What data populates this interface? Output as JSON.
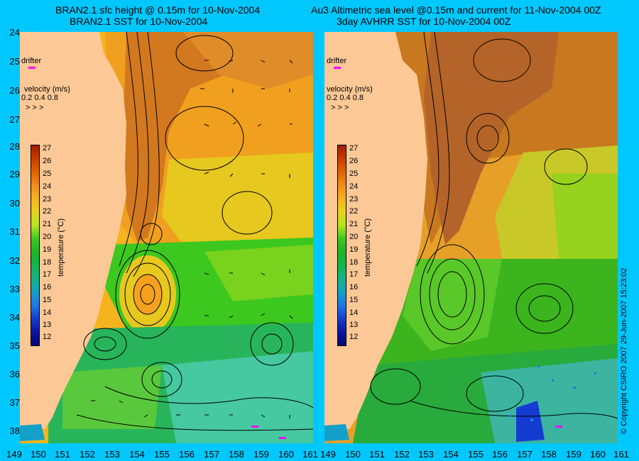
{
  "left": {
    "title_line1": "BRAN2.1 sfc height @ 0.15m for 10-Nov-2004",
    "title_line2": "BRAN2.1 SST for 10-Nov-2004"
  },
  "right": {
    "title_line1": "Au3 Altimetric sea level  @0.15m and current for 11-Nov-2004 00Z",
    "title_line2": "3day AVHRR SST for 10-Nov-2004 00Z"
  },
  "legend": {
    "drifter": "drifter",
    "velocity_title": "velocity (m/s)",
    "velocity_scale": "0.2 0.4 0.8",
    "colorbar_title": "temperature (°C)",
    "colorbar_labels": [
      "27",
      "26",
      "25",
      "24",
      "23",
      "22",
      "21",
      "20",
      "19",
      "18",
      "17",
      "16",
      "15",
      "14",
      "13",
      "12"
    ],
    "colorbar_colors": [
      "#a01e00",
      "#c83c00",
      "#e06400",
      "#f08c1e",
      "#f5b41e",
      "#e6d21e",
      "#b4e61e",
      "#3cc81e",
      "#1eb428",
      "#14b450",
      "#14b48c",
      "#14a0c8",
      "#1e78e6",
      "#143cd2",
      "#0a14a0",
      "#000a6e"
    ]
  },
  "y_axis_labels": [
    "24",
    "25",
    "26",
    "27",
    "28",
    "29",
    "30",
    "31",
    "32",
    "33",
    "34",
    "35",
    "36",
    "37",
    "38"
  ],
  "x_axis_left": [
    "149",
    "150",
    "151",
    "152",
    "153",
    "154",
    "155",
    "156",
    "157",
    "158",
    "159",
    "160",
    "161"
  ],
  "x_axis_right": [
    "149",
    "150",
    "151",
    "152",
    "153",
    "154",
    "155",
    "156",
    "157",
    "158",
    "159",
    "160",
    "161"
  ],
  "copyright": "© Copyright CSIRO 2007   29-Jun-2007 15:23:02",
  "colors": {
    "background": "#00c8ff",
    "land": "#fcc896",
    "warm": "#d2781e",
    "mid": "#f5b41e",
    "cool": "#3cc81e",
    "cold": "#14b48c",
    "drifter": "#ff00ff"
  }
}
